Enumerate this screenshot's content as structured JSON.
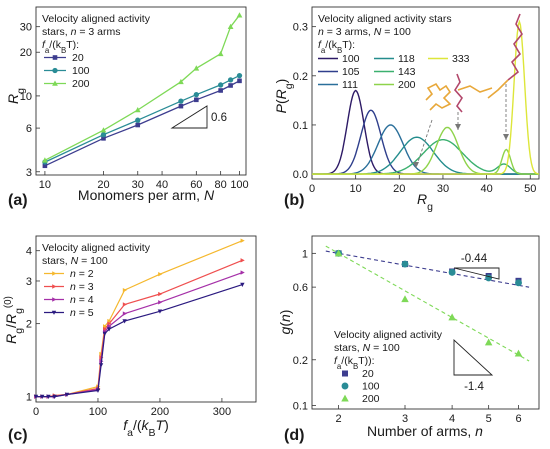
{
  "chart_data": [
    {
      "panel": "(a)",
      "type": "line",
      "xlabel": "Monomers per arm, N",
      "ylabel": "R_g",
      "xscale": "log",
      "yscale": "log",
      "xlim": [
        9,
        108
      ],
      "ylim": [
        2.85,
        41
      ],
      "xticks": [
        10,
        20,
        30,
        40,
        60,
        80,
        100
      ],
      "yticks": [
        3,
        6,
        10,
        20,
        30
      ],
      "legend_title": [
        "Velocity aligned activity",
        "stars, n = 3 arms",
        "f_a/(k_BT):"
      ],
      "legend_position": "top-left",
      "series": [
        {
          "name": "20",
          "marker": "square",
          "color": "#3d3d8f",
          "x": [
            10,
            20,
            30,
            50,
            60,
            80,
            90,
            100
          ],
          "y": [
            3.3,
            5.1,
            6.3,
            8.5,
            9.4,
            10.9,
            11.8,
            12.7
          ]
        },
        {
          "name": "100",
          "marker": "circle",
          "color": "#2a8c96",
          "x": [
            10,
            20,
            30,
            50,
            60,
            80,
            90,
            100
          ],
          "y": [
            3.5,
            5.4,
            6.8,
            9.2,
            10.2,
            11.9,
            12.9,
            13.8
          ]
        },
        {
          "name": "200",
          "marker": "triangle",
          "color": "#7ed957",
          "x": [
            10,
            20,
            30,
            50,
            60,
            80,
            90,
            100
          ],
          "y": [
            3.6,
            5.8,
            8.0,
            12.5,
            15.5,
            19.5,
            30,
            36
          ]
        }
      ],
      "slope_annotation": "0.6"
    },
    {
      "panel": "(b)",
      "type": "line",
      "xlabel": "R_g",
      "ylabel": "P(R_g)",
      "xlim": [
        0,
        52
      ],
      "ylim": [
        -0.01,
        0.34
      ],
      "xticks": [
        0,
        10,
        20,
        30,
        40,
        50
      ],
      "yticks": [
        0.0,
        0.1,
        0.2,
        0.3
      ],
      "legend_title": [
        "Velocity aligned activity stars",
        "n = 3 arms, N = 100",
        "f_a/(k_BT):"
      ],
      "legend_position": "top-left",
      "series": [
        {
          "name": "100",
          "color": "#2d1a66",
          "mean": 10,
          "sd": 1.9,
          "peak": 0.17
        },
        {
          "name": "105",
          "color": "#2f3f8c",
          "mean": 13.5,
          "sd": 2.3,
          "peak": 0.13
        },
        {
          "name": "111",
          "color": "#2a6f9a",
          "mean": 18,
          "sd": 2.9,
          "peak": 0.1
        },
        {
          "name": "118",
          "color": "#248d8d",
          "mean": 24,
          "sd": 3.8,
          "peak": 0.075
        },
        {
          "name": "143",
          "color": "#3bb06f",
          "mean": 30,
          "sd": 4.5,
          "peak": 0.07
        },
        {
          "name": "200",
          "color": "#8ed34a",
          "mean": 31,
          "sd": 2.5,
          "peak": 0.095
        },
        {
          "name": "333",
          "color": "#dde63a",
          "mean": 47.5,
          "sd": 1.2,
          "peak": 0.31
        }
      ]
    },
    {
      "panel": "(c)",
      "type": "line",
      "xlabel": "f_a/(k_BT)",
      "ylabel": "R_g / R_g^(0)",
      "yscale": "log",
      "xlim": [
        0,
        355
      ],
      "ylim": [
        0.95,
        4.6
      ],
      "xticks": [
        0,
        100,
        200,
        300
      ],
      "yticks": [
        1,
        2,
        3,
        4
      ],
      "legend_title": [
        "Velocity aligned activity",
        "stars, N = 100"
      ],
      "legend_position": "top-left",
      "series": [
        {
          "name": "n = 2",
          "color": "#f5b82e",
          "marker": "triangle-right",
          "x": [
            0,
            10,
            20,
            30,
            50,
            100,
            105,
            111,
            118,
            143,
            200,
            333
          ],
          "y": [
            1.0,
            1.0,
            1.0,
            1.01,
            1.02,
            1.1,
            1.5,
            1.95,
            2.05,
            2.75,
            3.2,
            4.4
          ]
        },
        {
          "name": "n = 3",
          "color": "#ef4f4f",
          "marker": "triangle-right",
          "x": [
            0,
            10,
            20,
            30,
            50,
            100,
            105,
            111,
            118,
            143,
            200,
            333
          ],
          "y": [
            1.0,
            1.0,
            1.0,
            1.01,
            1.02,
            1.08,
            1.45,
            1.9,
            2.0,
            2.4,
            2.65,
            3.65
          ]
        },
        {
          "name": "n = 4",
          "color": "#a530a8",
          "marker": "triangle-right",
          "x": [
            0,
            10,
            20,
            30,
            50,
            100,
            105,
            111,
            118,
            143,
            200,
            333
          ],
          "y": [
            1.0,
            1.0,
            1.0,
            1.0,
            1.02,
            1.07,
            1.4,
            1.85,
            1.95,
            2.2,
            2.45,
            3.25
          ]
        },
        {
          "name": "n = 5",
          "color": "#2b1a80",
          "marker": "triangle-down",
          "x": [
            0,
            10,
            20,
            30,
            50,
            100,
            105,
            111,
            118,
            143,
            200,
            333
          ],
          "y": [
            1.0,
            1.0,
            1.0,
            1.0,
            1.02,
            1.06,
            1.35,
            1.82,
            1.9,
            2.05,
            2.25,
            2.9
          ]
        }
      ]
    },
    {
      "panel": "(d)",
      "type": "scatter",
      "xlabel": "Number of arms, n",
      "ylabel": "g(n)",
      "xscale": "log",
      "yscale": "log",
      "xlim": [
        1.7,
        6.8
      ],
      "ylim": [
        0.095,
        1.3
      ],
      "xticks": [
        2,
        3,
        4,
        5,
        6
      ],
      "yticks": [
        0.1,
        0.2,
        0.6,
        1
      ],
      "legend_title": [
        "Velocity aligned activity",
        "stars, N = 100",
        "f_a/(k_BT)):"
      ],
      "legend_position": "bottom-left",
      "series": [
        {
          "name": "20",
          "marker": "square",
          "color": "#3d3d8f",
          "x": [
            2,
            3,
            4,
            5,
            6
          ],
          "y": [
            1.0,
            0.85,
            0.76,
            0.71,
            0.66
          ]
        },
        {
          "name": "100",
          "marker": "circle",
          "color": "#2a8c96",
          "x": [
            2,
            3,
            4,
            5,
            6
          ],
          "y": [
            1.0,
            0.85,
            0.75,
            0.69,
            0.64
          ]
        },
        {
          "name": "200",
          "marker": "triangle",
          "color": "#7ed957",
          "x": [
            2,
            3,
            4,
            5,
            6
          ],
          "y": [
            1.0,
            0.5,
            0.38,
            0.26,
            0.22
          ]
        }
      ],
      "fit_lines": [
        {
          "color": "#3d3d8f",
          "slope": -0.44
        },
        {
          "color": "#7ed957",
          "slope": -1.4
        }
      ],
      "slope_annotations": [
        "-0.44",
        "-1.4"
      ]
    }
  ]
}
